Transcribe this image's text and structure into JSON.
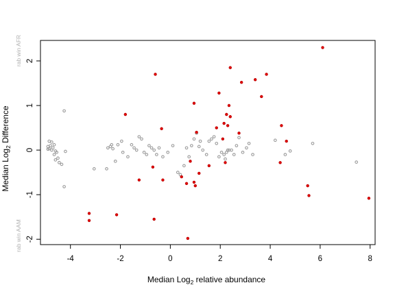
{
  "chart_data": {
    "type": "scatter",
    "xlabel": "Median  Log2 relative abundance",
    "ylabel": "Median  Log2 Difference",
    "xlabel_parts": {
      "pre": "Median  Log",
      "sub": "2",
      "post": " relative abundance"
    },
    "ylabel_parts": {
      "pre": "Median  Log",
      "sub": "2",
      "post": " Difference"
    },
    "margin_top_note": "rab win AFR",
    "margin_bottom_note": "rab win AAM",
    "xlim": [
      -5.2,
      8.2
    ],
    "ylim": [
      -2.12,
      2.46
    ],
    "x_ticks": [
      -4,
      -2,
      0,
      2,
      4,
      6,
      8
    ],
    "x_tick_labels": [
      "-4",
      "-2",
      "0",
      "2",
      "4",
      "6",
      "8"
    ],
    "y_ticks": [
      -2,
      -1,
      0,
      1,
      2
    ],
    "y_tick_labels": [
      "-2",
      "-1",
      "0",
      "1",
      "2"
    ],
    "grid": false,
    "legend": "none",
    "colors": {
      "gray": "#9a9a9a",
      "red": "#e00000"
    },
    "series": [
      {
        "color": "#9a9a9a",
        "points": [
          [
            -4.85,
            0.2
          ],
          [
            -4.75,
            0.18
          ],
          [
            -4.65,
            0.12
          ],
          [
            -4.8,
            0.1
          ],
          [
            -4.9,
            0.08
          ],
          [
            -4.7,
            0.05
          ],
          [
            -4.85,
            0.03
          ],
          [
            -4.75,
            0.0
          ],
          [
            -4.6,
            -0.02
          ],
          [
            -4.9,
            0.02
          ],
          [
            -4.55,
            -0.05
          ],
          [
            -4.65,
            -0.1
          ],
          [
            -4.5,
            -0.18
          ],
          [
            -4.6,
            -0.22
          ],
          [
            -4.45,
            -0.28
          ],
          [
            -4.35,
            -0.32
          ],
          [
            -4.25,
            0.88
          ],
          [
            -4.25,
            -0.82
          ],
          [
            -4.2,
            -0.03
          ],
          [
            -3.05,
            -0.42
          ],
          [
            -2.55,
            -0.42
          ],
          [
            -2.5,
            0.05
          ],
          [
            -2.4,
            0.08
          ],
          [
            -2.35,
            0.12
          ],
          [
            -2.3,
            0.03
          ],
          [
            -2.2,
            -0.25
          ],
          [
            -2.1,
            0.12
          ],
          [
            -1.95,
            0.2
          ],
          [
            -1.9,
            -0.05
          ],
          [
            -1.7,
            -0.15
          ],
          [
            -1.55,
            0.12
          ],
          [
            -1.45,
            0.05
          ],
          [
            -1.35,
            0.0
          ],
          [
            -1.25,
            0.3
          ],
          [
            -1.15,
            0.25
          ],
          [
            -1.05,
            -0.05
          ],
          [
            -0.95,
            -0.1
          ],
          [
            -0.85,
            0.1
          ],
          [
            -0.75,
            0.05
          ],
          [
            -0.65,
            0.0
          ],
          [
            -0.55,
            -0.1
          ],
          [
            -0.45,
            0.05
          ],
          [
            -0.3,
            -0.15
          ],
          [
            -0.1,
            -0.05
          ],
          [
            0.1,
            0.1
          ],
          [
            0.3,
            -0.5
          ],
          [
            0.4,
            -0.55
          ],
          [
            0.55,
            -0.35
          ],
          [
            0.65,
            0.05
          ],
          [
            0.75,
            -0.15
          ],
          [
            0.85,
            0.1
          ],
          [
            0.95,
            0.25
          ],
          [
            1.05,
            0.38
          ],
          [
            1.15,
            0.08
          ],
          [
            1.2,
            0.2
          ],
          [
            1.3,
            0.0
          ],
          [
            1.45,
            -0.1
          ],
          [
            1.55,
            0.2
          ],
          [
            1.65,
            0.25
          ],
          [
            1.75,
            0.3
          ],
          [
            1.85,
            0.15
          ],
          [
            1.95,
            -0.15
          ],
          [
            2.05,
            -0.05
          ],
          [
            2.15,
            -0.1
          ],
          [
            2.2,
            -0.2
          ],
          [
            2.25,
            -0.05
          ],
          [
            2.3,
            0.0
          ],
          [
            2.35,
            0.0
          ],
          [
            2.45,
            0.0
          ],
          [
            2.55,
            -0.1
          ],
          [
            2.65,
            0.1
          ],
          [
            2.75,
            0.28
          ],
          [
            2.9,
            -0.05
          ],
          [
            3.05,
            0.05
          ],
          [
            3.15,
            0.15
          ],
          [
            3.3,
            -0.1
          ],
          [
            4.2,
            0.22
          ],
          [
            4.6,
            -0.1
          ],
          [
            4.8,
            -0.02
          ],
          [
            5.7,
            0.15
          ],
          [
            7.45,
            -0.27
          ]
        ]
      },
      {
        "color": "#e00000",
        "points": [
          [
            -3.25,
            -1.42
          ],
          [
            -3.25,
            -1.58
          ],
          [
            -2.15,
            -1.45
          ],
          [
            -1.8,
            0.8
          ],
          [
            -1.25,
            -0.67
          ],
          [
            -0.7,
            -0.38
          ],
          [
            -0.65,
            -1.55
          ],
          [
            -0.6,
            1.7
          ],
          [
            -0.35,
            0.48
          ],
          [
            -0.3,
            -0.67
          ],
          [
            0.45,
            -0.6
          ],
          [
            0.65,
            -0.75
          ],
          [
            0.7,
            -1.98
          ],
          [
            0.8,
            -0.25
          ],
          [
            0.95,
            1.05
          ],
          [
            0.95,
            -0.72
          ],
          [
            1.0,
            -0.8
          ],
          [
            1.05,
            0.4
          ],
          [
            1.15,
            -0.52
          ],
          [
            1.55,
            -0.35
          ],
          [
            1.85,
            0.5
          ],
          [
            1.95,
            1.28
          ],
          [
            2.1,
            0.25
          ],
          [
            2.15,
            0.6
          ],
          [
            2.2,
            -0.28
          ],
          [
            2.25,
            0.8
          ],
          [
            2.3,
            0.55
          ],
          [
            2.35,
            1.0
          ],
          [
            2.4,
            0.75
          ],
          [
            2.4,
            1.85
          ],
          [
            2.75,
            0.38
          ],
          [
            2.85,
            1.52
          ],
          [
            3.4,
            1.58
          ],
          [
            3.65,
            1.2
          ],
          [
            3.85,
            1.7
          ],
          [
            4.4,
            -0.28
          ],
          [
            4.45,
            0.55
          ],
          [
            4.65,
            0.2
          ],
          [
            5.5,
            -0.8
          ],
          [
            5.55,
            -1.02
          ],
          [
            6.1,
            2.3
          ],
          [
            7.95,
            -1.08
          ]
        ]
      }
    ]
  }
}
